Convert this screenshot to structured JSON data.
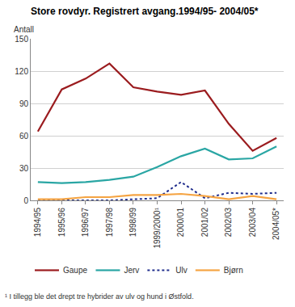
{
  "chart_data": {
    "type": "line",
    "title": "Store rovdyr. Registrert avgang.1994/95- 2004/05*",
    "y_label": "Antall",
    "categories": [
      "1994/95",
      "1995/96",
      "1996/97",
      "1997/98",
      "1998/99",
      "1999/2000¹",
      "2000/01",
      "2001/02",
      "2002/03",
      "2003/04",
      "2004/05*"
    ],
    "series": [
      {
        "name": "Gaupe",
        "color": "#9b1c1f",
        "line_style": "solid",
        "values": [
          64,
          103,
          113,
          127,
          105,
          101,
          98,
          102,
          71,
          46,
          58
        ]
      },
      {
        "name": "Jerv",
        "color": "#2aa6a4",
        "line_style": "solid",
        "values": [
          17,
          16,
          17,
          19,
          22,
          31,
          41,
          48,
          38,
          39,
          50
        ]
      },
      {
        "name": "Ulv",
        "color": "#1f2c8c",
        "line_style": "dot",
        "values": [
          0,
          0,
          0,
          0,
          1,
          2,
          17,
          2,
          7,
          6,
          7
        ]
      },
      {
        "name": "Bjørn",
        "color": "#f5a443",
        "line_style": "solid",
        "values": [
          1,
          1,
          3,
          3,
          5,
          5,
          6,
          4,
          1,
          4,
          1
        ]
      }
    ],
    "ylim": [
      0,
      150
    ],
    "yticks": [
      0,
      30,
      60,
      90,
      120,
      150
    ],
    "grid": true,
    "legend": "bottom",
    "annotations": [
      "¹ I tillegg ble det drept tre hybrider av ulv og hund i Østfold."
    ]
  }
}
